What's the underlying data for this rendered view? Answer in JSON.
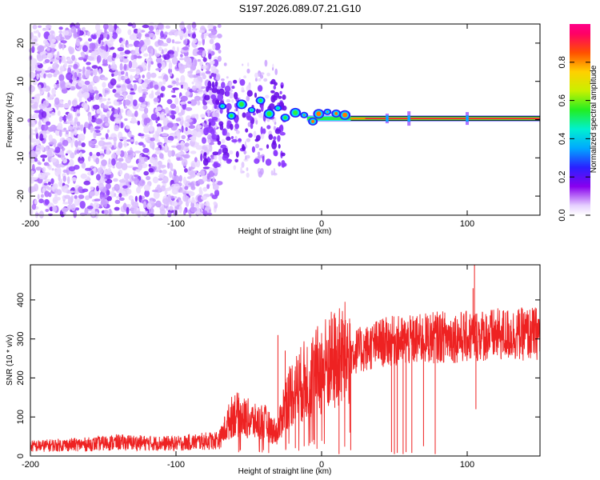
{
  "title": "S197.2026.089.07.21.G10",
  "chart_data": [
    {
      "type": "heatmap",
      "xlabel": "Height of straight line (km)",
      "ylabel": "Frequency (Hz)",
      "xlim": [
        -200,
        150
      ],
      "ylim": [
        -25,
        25
      ],
      "xticks": [
        -200,
        -100,
        0,
        100
      ],
      "yticks": [
        -20,
        -10,
        0,
        10,
        20
      ],
      "colorbar": {
        "label": "Normalized spectral amplitude",
        "range": [
          0,
          1
        ],
        "ticks": [
          "0.0",
          "0.2",
          "0.4",
          "0.6",
          "0.8"
        ]
      },
      "features": [
        {
          "name": "noise-region",
          "x_range": [
            -200,
            -70
          ],
          "y_range": [
            -25,
            25
          ]
        },
        {
          "name": "signal-line",
          "x_range": [
            -70,
            150
          ],
          "frequency": 0.3
        }
      ]
    },
    {
      "type": "line",
      "xlabel": "Height of straight line (km)",
      "ylabel": "SNR (10 * v/v)",
      "xlim": [
        -200,
        150
      ],
      "ylim": [
        0,
        490
      ],
      "xticks": [
        -200,
        -100,
        0,
        100
      ],
      "yticks": [
        0,
        100,
        200,
        300,
        400
      ],
      "series_color": "#ee2222",
      "x": [
        -200,
        -180,
        -160,
        -140,
        -120,
        -100,
        -90,
        -80,
        -70,
        -65,
        -60,
        -55,
        -50,
        -45,
        -40,
        -35,
        -30,
        -25,
        -20,
        -15,
        -10,
        -5,
        0,
        5,
        10,
        15,
        20,
        30,
        40,
        50,
        60,
        70,
        80,
        90,
        100,
        110,
        120,
        130,
        140,
        150
      ],
      "values": [
        25,
        28,
        30,
        35,
        33,
        32,
        35,
        38,
        42,
        80,
        110,
        100,
        95,
        85,
        90,
        70,
        60,
        140,
        165,
        180,
        200,
        210,
        225,
        240,
        245,
        255,
        265,
        275,
        290,
        295,
        295,
        300,
        305,
        305,
        305,
        310,
        310,
        312,
        312,
        315
      ]
    }
  ]
}
